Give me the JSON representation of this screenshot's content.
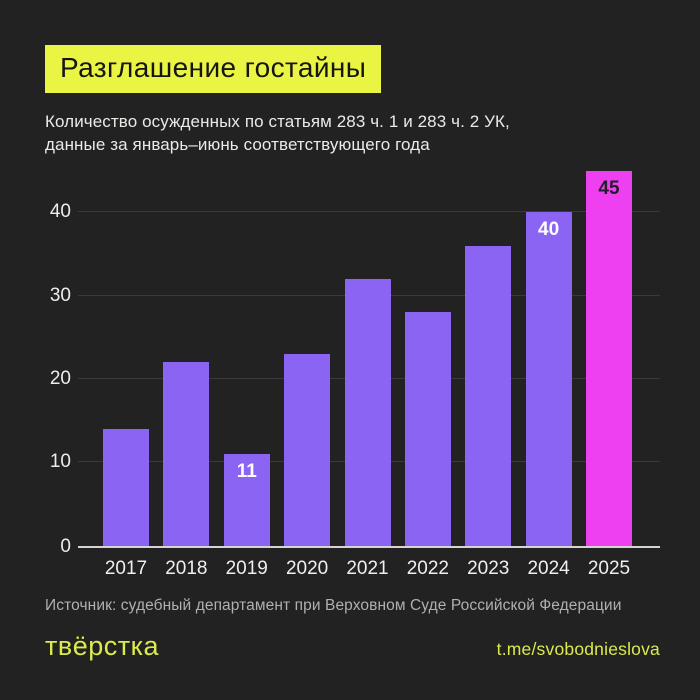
{
  "header": {
    "title": "Разглашение гостайны",
    "subtitle_line1": "Количество осужденных по статьям 283 ч. 1 и 283 ч. 2 УК,",
    "subtitle_line2": "данные за январь–июнь соответствующего года"
  },
  "chart_data": {
    "type": "bar",
    "categories": [
      "2017",
      "2018",
      "2019",
      "2020",
      "2021",
      "2022",
      "2023",
      "2024",
      "2025"
    ],
    "values": [
      14,
      22,
      11,
      23,
      32,
      28,
      36,
      40,
      45
    ],
    "data_labels": [
      "",
      "",
      "11",
      "",
      "",
      "",
      "",
      "40",
      "45"
    ],
    "highlight_index": 8,
    "title": "Разглашение гостайны",
    "xlabel": "",
    "ylabel": "",
    "yticks": [
      0,
      10,
      20,
      30,
      40
    ],
    "ylim": [
      0,
      45.6
    ],
    "grid": true,
    "legend": "none",
    "colors": {
      "bar": "#8b64f4",
      "highlight_bar": "#ee3ff0",
      "gridline": "#3a3a3c",
      "baseline": "#d6d4d2",
      "axis_text": "#eeedeb"
    }
  },
  "footer": {
    "source": "Источник: судебный департамент при Верховном Суде Российской Федерации",
    "logo": "твёрстка",
    "telegram": "t.me/svobodnieslova"
  },
  "theme": {
    "background": "#222223",
    "accent_lime": "#eaf442",
    "title_text": "#151515"
  }
}
